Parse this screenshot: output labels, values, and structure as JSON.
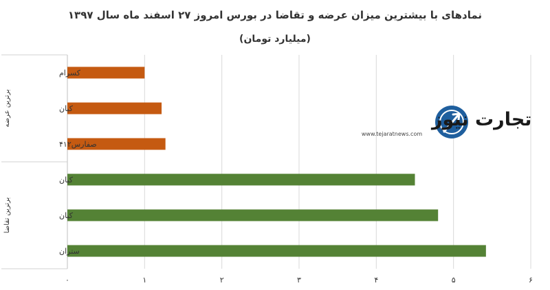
{
  "chart_data": {
    "type": "bar",
    "orientation": "horizontal",
    "title": "نمادهای با بیشترین میزان عرضه و تقاضا در بورس امروز ۲۷ اسفند ماه سال ۱۳۹۷",
    "subtitle": "(میلیارد تومان)",
    "xlim": [
      0,
      6
    ],
    "x_ticks": [
      "۰",
      "۱",
      "۲",
      "۳",
      "۴",
      "۵",
      "۶"
    ],
    "grid": true,
    "groups": [
      {
        "label": "برترین عرضه",
        "color": "#C55A11",
        "categories": [
          "کسرام",
          "کیان",
          "صفارس۴۱۲"
        ],
        "values": [
          1.0,
          1.22,
          1.27
        ]
      },
      {
        "label": "برترین تقاضا",
        "color": "#548235",
        "categories": [
          "کیان",
          "کیان",
          "ستران"
        ],
        "values": [
          4.5,
          4.8,
          5.42
        ]
      }
    ]
  },
  "watermark": {
    "logo_text": "تجارت نیوز",
    "url_text": "www.tejaratnews.com",
    "icon": "globe-arrow-icon",
    "colors": {
      "text": "#1a1a1a",
      "accent": "#1f5f9e"
    }
  }
}
